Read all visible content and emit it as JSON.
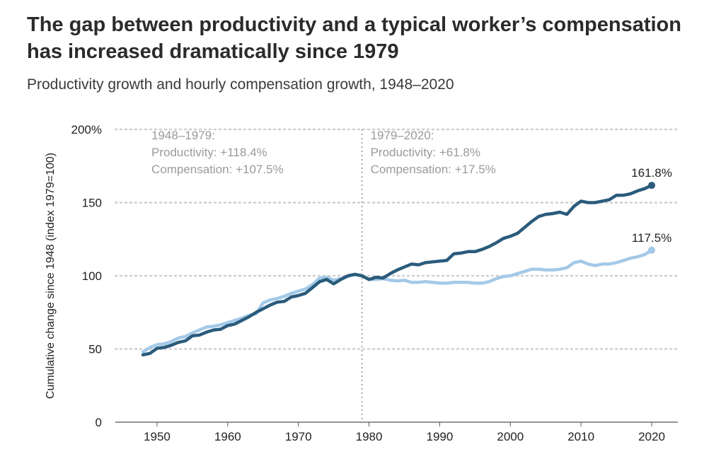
{
  "title": "The gap between productivity and a typical worker’s compensation has increased dramatically since 1979",
  "subtitle": "Productivity growth and hourly compensation growth, 1948–2020",
  "colors": {
    "productivity": "#2a5b7c",
    "compensation": "#a4c9e8",
    "grid": "#cfcfcf",
    "annotation": "#9a9a9a"
  },
  "chart_data": {
    "type": "line",
    "ylabel": "Cumulative change since 1948 (index 1979=100)",
    "xlabel": "",
    "ylim": [
      0,
      200
    ],
    "xlim": [
      1945,
      2023
    ],
    "yticks": [
      0,
      50,
      100,
      150,
      200
    ],
    "ytick_labels": [
      "0",
      "50",
      "100",
      "150",
      "200%"
    ],
    "xticks": [
      1950,
      1960,
      1970,
      1980,
      1990,
      2000,
      2010,
      2020
    ],
    "xtick_labels": [
      "1950",
      "1960",
      "1970",
      "1980",
      "1990",
      "2000",
      "2010",
      "2020"
    ],
    "grid": "horizontal dotted",
    "divider_year": 1979,
    "annotations": [
      {
        "year": 1948,
        "lines": [
          "1948–1979:",
          "Productivity: +118.4%",
          "Compensation: +107.5%"
        ]
      },
      {
        "year": 1979,
        "lines": [
          "1979–2020:",
          "Productivity: +61.8%",
          "Compensation: +17.5%"
        ]
      }
    ],
    "x": [
      1948,
      1949,
      1950,
      1951,
      1952,
      1953,
      1954,
      1955,
      1956,
      1957,
      1958,
      1959,
      1960,
      1961,
      1962,
      1963,
      1964,
      1965,
      1966,
      1967,
      1968,
      1969,
      1970,
      1971,
      1972,
      1973,
      1974,
      1975,
      1976,
      1977,
      1978,
      1979,
      1980,
      1981,
      1982,
      1983,
      1984,
      1985,
      1986,
      1987,
      1988,
      1989,
      1990,
      1991,
      1992,
      1993,
      1994,
      1995,
      1996,
      1997,
      1998,
      1999,
      2000,
      2001,
      2002,
      2003,
      2004,
      2005,
      2006,
      2007,
      2008,
      2009,
      2010,
      2011,
      2012,
      2013,
      2014,
      2015,
      2016,
      2017,
      2018,
      2019,
      2020
    ],
    "series": [
      {
        "name": "Productivity",
        "end_label": "161.8%",
        "values": [
          46,
          47,
          50.5,
          51,
          52.5,
          54.5,
          55.5,
          59,
          59.5,
          61.5,
          63,
          63.5,
          66,
          67,
          69.5,
          72,
          75,
          77.5,
          80,
          82,
          82.5,
          85.5,
          86.5,
          88,
          92,
          96,
          97.5,
          94.5,
          97.5,
          100,
          101,
          100,
          97.5,
          99,
          98.5,
          101.5,
          104,
          106,
          108,
          107.5,
          109,
          109.5,
          110,
          110.5,
          115,
          115.5,
          116.5,
          116.5,
          118,
          120,
          122.5,
          125.5,
          127,
          129,
          133,
          137,
          140.5,
          142,
          142.5,
          143.5,
          142,
          147.5,
          151,
          150,
          150,
          151,
          152,
          155,
          155,
          156,
          158,
          159.5,
          161.8
        ]
      },
      {
        "name": "Compensation",
        "end_label": "117.5%",
        "values": [
          48,
          51,
          53,
          53.5,
          55,
          57.5,
          58.5,
          61,
          63,
          65,
          65.5,
          66.5,
          68,
          69.5,
          71,
          73,
          74,
          81.5,
          83.5,
          84.5,
          86,
          88,
          89.5,
          91,
          94,
          98.5,
          99,
          97,
          98,
          99.5,
          101,
          100,
          97.5,
          97.5,
          98,
          97,
          96.5,
          97,
          95.5,
          95.5,
          96,
          95.5,
          95,
          95,
          95.5,
          95.5,
          95.5,
          95,
          95,
          96,
          98,
          99.5,
          100,
          101.5,
          103,
          104.5,
          104.5,
          104,
          104,
          104.5,
          105.5,
          109,
          110,
          108,
          107,
          108,
          108,
          109,
          110.5,
          112,
          113,
          114.5,
          117.5
        ]
      }
    ]
  }
}
